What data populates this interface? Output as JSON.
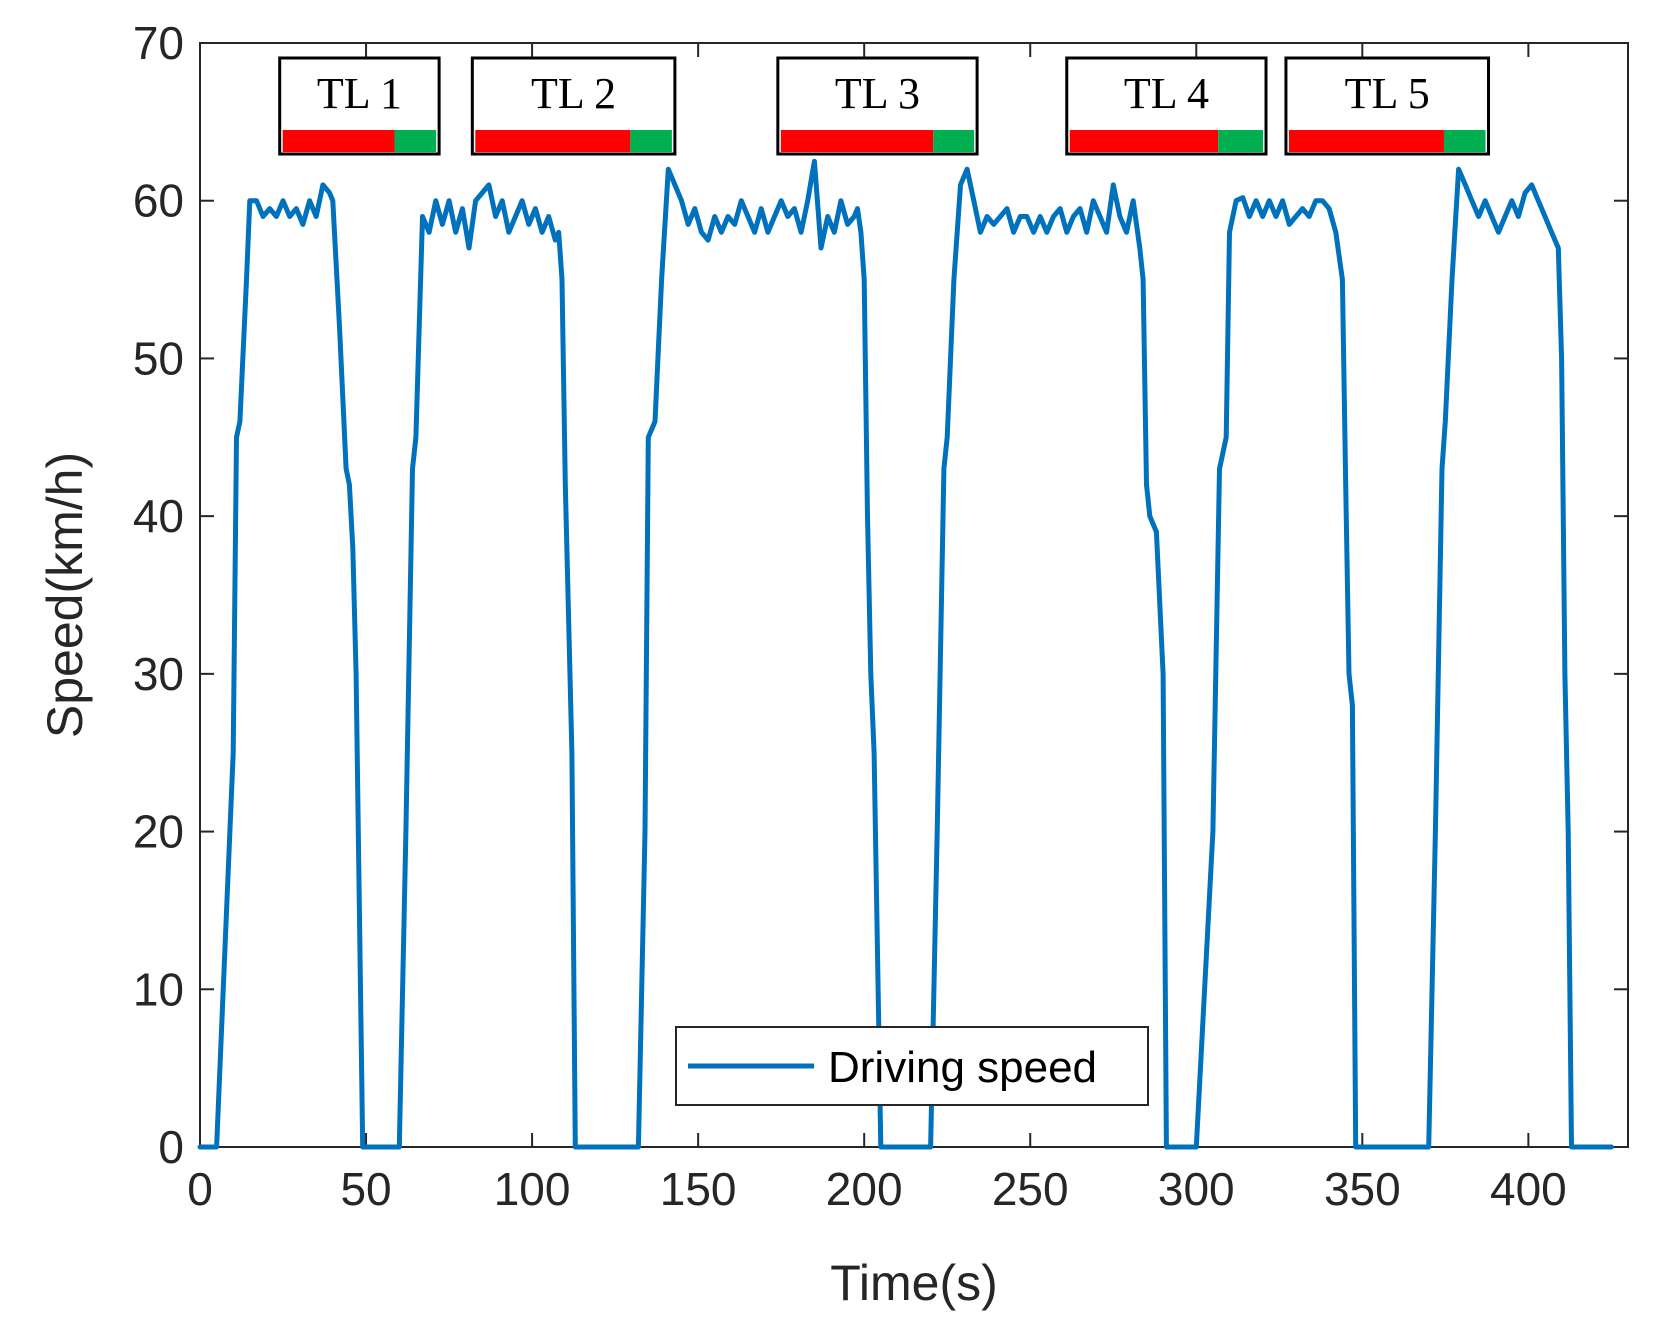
{
  "colors": {
    "series": "#0072BD",
    "red_phase": "#FF0000",
    "green_phase": "#00B050",
    "axis": "#262626"
  },
  "chart_data": {
    "type": "line",
    "xlabel": "Time(s)",
    "ylabel": "Speed(km/h)",
    "xlim": [
      0,
      430
    ],
    "ylim": [
      0,
      70
    ],
    "xticks": [
      0,
      50,
      100,
      150,
      200,
      250,
      300,
      350,
      400
    ],
    "yticks": [
      0,
      10,
      20,
      30,
      40,
      50,
      60,
      70
    ],
    "legend": {
      "position": "bottom-center",
      "label": "Driving speed"
    },
    "traffic_lights": [
      {
        "label": "TL 1",
        "x_start": 24,
        "x_end": 72,
        "red_fraction": 0.72
      },
      {
        "label": "TL 2",
        "x_start": 82,
        "x_end": 143,
        "red_fraction": 0.78
      },
      {
        "label": "TL 3",
        "x_start": 174,
        "x_end": 234,
        "red_fraction": 0.78
      },
      {
        "label": "TL 4",
        "x_start": 261,
        "x_end": 321,
        "red_fraction": 0.76
      },
      {
        "label": "TL 5",
        "x_start": 327,
        "x_end": 388,
        "red_fraction": 0.78
      }
    ],
    "series": [
      {
        "name": "Driving speed",
        "x": [
          0,
          5,
          10,
          11,
          12,
          14,
          15,
          17,
          19,
          21,
          23,
          25,
          27,
          29,
          31,
          33,
          35,
          37,
          39,
          40,
          42,
          44,
          45,
          46,
          47,
          49,
          50,
          55,
          60,
          62,
          64,
          65,
          67,
          69,
          71,
          73,
          75,
          77,
          79,
          81,
          83,
          85,
          87,
          89,
          91,
          93,
          95,
          97,
          99,
          101,
          103,
          105,
          107,
          108,
          109,
          110,
          112,
          113,
          115,
          120,
          125,
          130,
          132,
          134,
          135,
          137,
          139,
          141,
          143,
          145,
          147,
          149,
          151,
          153,
          155,
          157,
          159,
          161,
          163,
          165,
          167,
          169,
          171,
          173,
          175,
          177,
          179,
          181,
          183,
          185,
          187,
          189,
          191,
          193,
          195,
          197,
          198,
          199,
          200,
          201,
          202,
          203,
          205,
          206,
          210,
          215,
          220,
          222,
          224,
          225,
          227,
          229,
          231,
          233,
          235,
          237,
          239,
          241,
          243,
          245,
          247,
          249,
          251,
          253,
          255,
          257,
          259,
          261,
          263,
          265,
          267,
          269,
          271,
          273,
          275,
          277,
          279,
          281,
          283,
          284,
          285,
          286,
          288,
          290,
          291,
          292,
          293,
          295,
          300,
          305,
          307,
          309,
          310,
          312,
          314,
          316,
          318,
          320,
          322,
          324,
          326,
          328,
          330,
          332,
          334,
          336,
          338,
          340,
          342,
          344,
          345,
          346,
          347,
          348,
          350,
          351,
          352,
          353,
          355,
          360,
          365,
          370,
          372,
          374,
          375,
          377,
          379,
          381,
          383,
          385,
          387,
          389,
          391,
          393,
          395,
          397,
          399,
          401,
          403,
          405,
          407,
          409,
          410,
          411,
          412,
          413,
          414,
          415,
          420,
          425
        ],
        "values": [
          0,
          0,
          25,
          45,
          46,
          55,
          60,
          60,
          59,
          59.5,
          59,
          60,
          59,
          59.5,
          58.5,
          60,
          59,
          61,
          60.5,
          60,
          52,
          43,
          42,
          38,
          30,
          0,
          0,
          0,
          0,
          20,
          43,
          45,
          59,
          58,
          60,
          58.5,
          60,
          58,
          59.5,
          57,
          60,
          60.5,
          61,
          59,
          60,
          58,
          59,
          60,
          58.5,
          59.5,
          58,
          59,
          57.5,
          58,
          55,
          42,
          25,
          0,
          0,
          0,
          0,
          0,
          0,
          20,
          45,
          46,
          55,
          62,
          61,
          60,
          58.5,
          59.5,
          58,
          57.5,
          59,
          58,
          59,
          58.5,
          60,
          59,
          58,
          59.5,
          58,
          59,
          60,
          59,
          59.5,
          58,
          60,
          62.5,
          57,
          59,
          58,
          60,
          58.5,
          59,
          59.5,
          58,
          55,
          40,
          30,
          25,
          0,
          0,
          0,
          0,
          0,
          20,
          43,
          45,
          55,
          61,
          62,
          60,
          58,
          59,
          58.5,
          59,
          59.5,
          58,
          59,
          59,
          58,
          59,
          58,
          59,
          59.5,
          58,
          59,
          59.5,
          58,
          60,
          59,
          58,
          61,
          59,
          58,
          60,
          57,
          55,
          42,
          40,
          39,
          30,
          0,
          0,
          0,
          0,
          0,
          20,
          43,
          45,
          58,
          60,
          60.2,
          59,
          60,
          59,
          60,
          59,
          60,
          58.5,
          59,
          59.5,
          59,
          60,
          60,
          59.5,
          58,
          55,
          42,
          30,
          28,
          0,
          0,
          0,
          0,
          0,
          0,
          0,
          0,
          0,
          20,
          43,
          46,
          55,
          62,
          61,
          60,
          59,
          60,
          59,
          58,
          59,
          60,
          59,
          60.5,
          61,
          60,
          59,
          58,
          57,
          50,
          30,
          20,
          0,
          0,
          0,
          0,
          0
        ]
      }
    ]
  }
}
